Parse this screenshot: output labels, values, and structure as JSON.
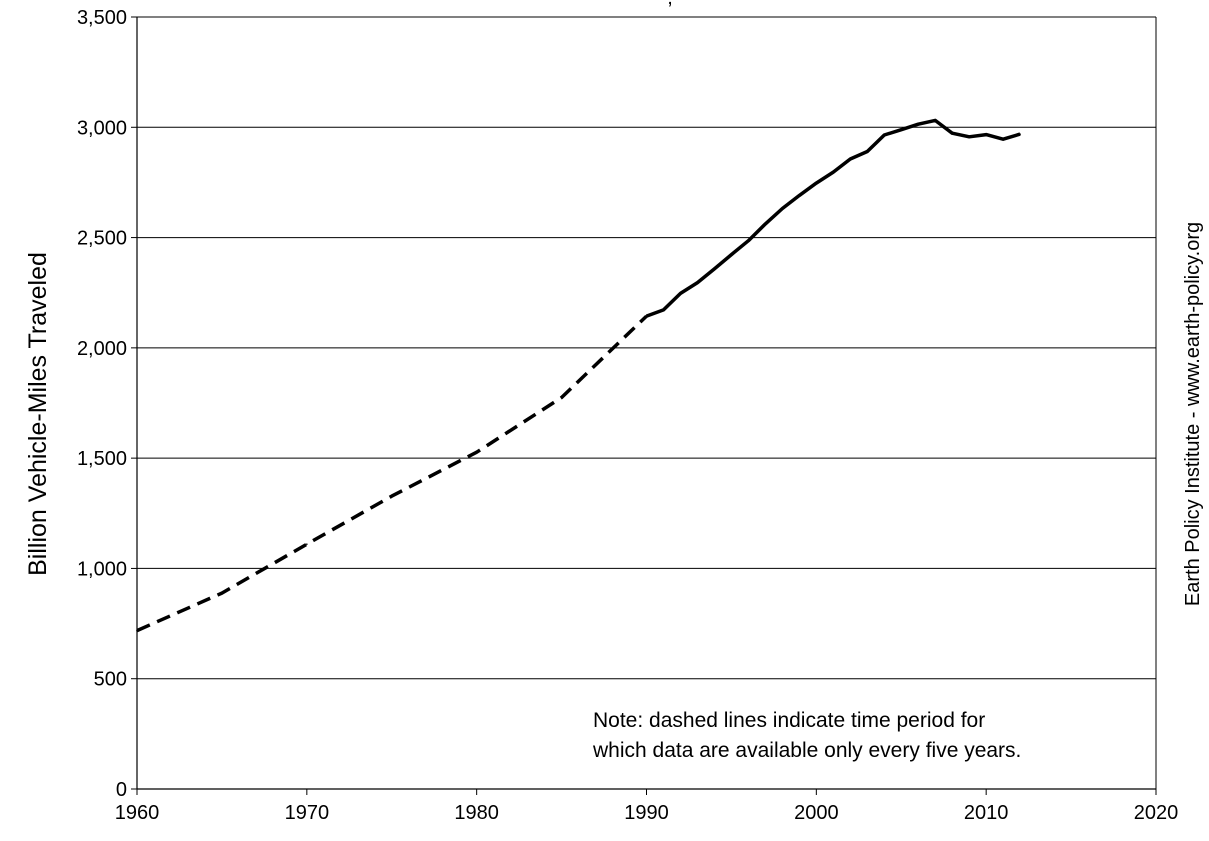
{
  "chart_data": {
    "type": "line",
    "title": "",
    "title_fragment": ",",
    "xlabel": "",
    "ylabel": "Billion Vehicle-Miles Traveled",
    "xlim": [
      1960,
      2020
    ],
    "ylim": [
      0,
      3500
    ],
    "x_ticks": [
      1960,
      1970,
      1980,
      1990,
      2000,
      2010,
      2020
    ],
    "y_ticks": [
      0,
      500,
      1000,
      1500,
      2000,
      2500,
      3000,
      3500
    ],
    "x_tick_labels": [
      "1960",
      "1970",
      "1980",
      "1990",
      "2000",
      "2010",
      "2020"
    ],
    "y_tick_labels": [
      "0",
      "500",
      "1,000",
      "1,500",
      "2,000",
      "2,500",
      "3,000",
      "3,500"
    ],
    "grid": "horizontal",
    "credit": "Earth Policy Institute - www.earth-policy.org",
    "note_lines": [
      "Note: dashed lines indicate time period for",
      "which data are available only every five years."
    ],
    "series": [
      {
        "style": "dashed",
        "x": [
          1960,
          1965,
          1970,
          1975,
          1980,
          1985,
          1990
        ],
        "y": [
          718,
          888,
          1110,
          1328,
          1527,
          1775,
          2144
        ]
      },
      {
        "style": "solid",
        "x": [
          1990,
          1991,
          1992,
          1993,
          1994,
          1995,
          1996,
          1997,
          1998,
          1999,
          2000,
          2001,
          2002,
          2003,
          2004,
          2005,
          2006,
          2007,
          2008,
          2009,
          2010,
          2011,
          2012
        ],
        "y": [
          2144,
          2172,
          2247,
          2296,
          2358,
          2423,
          2486,
          2562,
          2632,
          2691,
          2747,
          2797,
          2856,
          2890,
          2965,
          2989,
          3014,
          3031,
          2973,
          2957,
          2967,
          2946,
          2969
        ]
      }
    ]
  }
}
